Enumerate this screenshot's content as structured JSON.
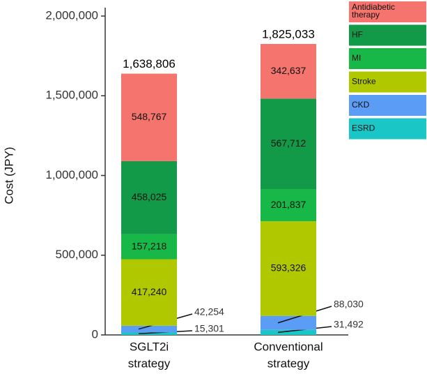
{
  "chart_data": {
    "type": "bar",
    "stacked": true,
    "title": "",
    "xlabel": "",
    "ylabel": "Cost (JPY)",
    "ylim": [
      0,
      2000000
    ],
    "yticks": [
      0,
      500000,
      1000000,
      1500000,
      2000000
    ],
    "ytick_labels": [
      "0",
      "500,000",
      "1,000,000",
      "1,500,000",
      "2,000,000"
    ],
    "categories": [
      {
        "lines": [
          "SGLT2i",
          "strategy"
        ]
      },
      {
        "lines": [
          "Conventional",
          "strategy"
        ]
      }
    ],
    "totals": [
      1638806,
      1825033
    ],
    "total_labels": [
      "1,638,806",
      "1,825,033"
    ],
    "series": [
      {
        "name": "ESRD",
        "color": "#1ac6c6",
        "values": [
          15301,
          31492
        ],
        "labels": [
          "15,301",
          "31,492"
        ],
        "label_outside": true
      },
      {
        "name": "CKD",
        "color": "#5b9cf5",
        "values": [
          42254,
          88030
        ],
        "labels": [
          "42,254",
          "88,030"
        ],
        "label_outside": true
      },
      {
        "name": "Stroke",
        "color": "#b0c800",
        "values": [
          417240,
          593326
        ],
        "labels": [
          "417,240",
          "593,326"
        ],
        "label_outside": false
      },
      {
        "name": "MI",
        "color": "#18b848",
        "values": [
          157218,
          201837
        ],
        "labels": [
          "157,218",
          "201,837"
        ],
        "label_outside": false
      },
      {
        "name": "HF",
        "color": "#139a48",
        "values": [
          458025,
          567712
        ],
        "labels": [
          "458,025",
          "567,712"
        ],
        "label_outside": false
      },
      {
        "name": "Antidiabetic therapy",
        "legend_lines": [
          "Antidiabetic",
          "therapy"
        ],
        "color": "#f5756e",
        "values": [
          548767,
          342637
        ],
        "labels": [
          "548,767",
          "342,637"
        ],
        "label_outside": false
      }
    ],
    "legend_position": "top-right",
    "grid": false
  }
}
